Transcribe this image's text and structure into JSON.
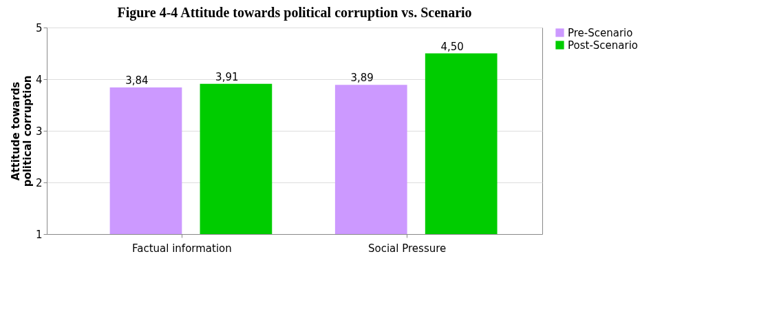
{
  "chart_data": {
    "type": "bar",
    "title": "Figure 4-4 Attitude towards political corruption vs. Scenario",
    "ylabel": "Attitude towards political corruption",
    "categories": [
      "Factual information",
      "Social Pressure"
    ],
    "series": [
      {
        "name": "Pre-Scenario",
        "color": "#cc99ff",
        "values": [
          3.84,
          3.89
        ],
        "value_labels": [
          "3,84",
          "3,89"
        ]
      },
      {
        "name": "Post-Scenario",
        "color": "#00cc00",
        "values": [
          3.91,
          4.5
        ],
        "value_labels": [
          "3,91",
          "4,50"
        ]
      }
    ],
    "ylim": [
      1,
      5
    ],
    "yticks": [
      1,
      2,
      3,
      4,
      5
    ],
    "grid": "y",
    "legend": "right"
  }
}
